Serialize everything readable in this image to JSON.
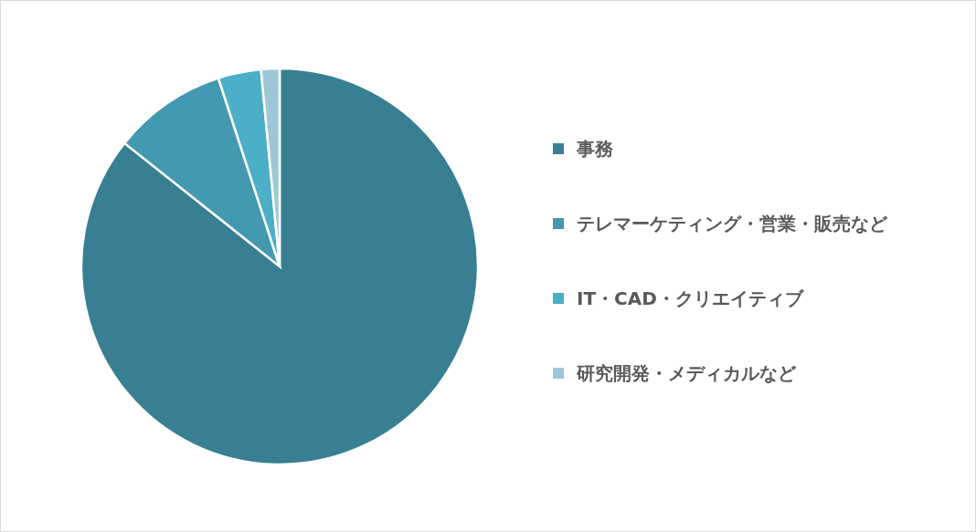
{
  "chart_data": {
    "type": "pie",
    "categories": [
      "事務",
      "テレマーケティング・営業・販売など",
      "IT・CAD・クリエイティブ",
      "研究開発・メディカルなど"
    ],
    "values": [
      85.7,
      9.3,
      3.5,
      1.5
    ],
    "colors": [
      "#387f93",
      "#4399b0",
      "#4bafc7",
      "#9cc8d6"
    ],
    "legend": "right"
  }
}
